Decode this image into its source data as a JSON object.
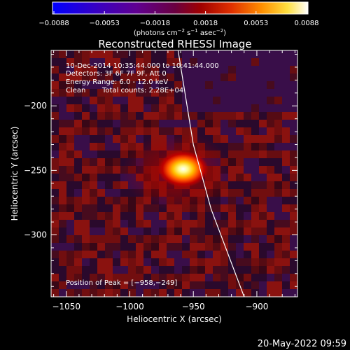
{
  "chart_data": {
    "type": "heatmap",
    "title": "Reconstructed RHESSI Image",
    "xlabel": "Heliocentric X (arcsec)",
    "ylabel": "Heliocentric Y (arcsec)",
    "xlim": [
      -1062,
      -868
    ],
    "ylim": [
      -348,
      -157
    ],
    "x_ticks": [
      -1050,
      -1000,
      -950,
      -900
    ],
    "y_ticks": [
      -200,
      -250,
      -300
    ],
    "colorbar": {
      "min": -0.0088,
      "max": 0.0088,
      "ticks": [
        "−0.0088",
        "−0.0053",
        "−0.0018",
        "0.0018",
        "0.0053",
        "0.0088"
      ],
      "unit_main": "(photons cm",
      "unit_sup1": "−2",
      "unit_mid1": " s",
      "unit_sup2": "−1",
      "unit_mid2": " asec",
      "unit_sup3": "−2",
      "unit_end": ")"
    },
    "annotations": {
      "time_range": "10-Dec-2014 10:35:44.000 to 10:41:44.000",
      "detectors": "Detectors: 3F 6F 7F 9F, Att 0",
      "energy": "Energy Range: 6.0 - 12.0 keV",
      "algorithm": "Clean",
      "counts": "Total counts: 2.28E+04",
      "peak": "Position of Peak = [−958,−249]"
    },
    "peak": {
      "x": -958,
      "y": -249
    },
    "limb": [
      {
        "x": -962,
        "y": -157
      },
      {
        "x": -950,
        "y": -230
      },
      {
        "x": -936,
        "y": -280
      },
      {
        "x": -910,
        "y": -348
      }
    ],
    "footer_date": "20-May-2022 09:59",
    "colors": {
      "background": "#000000",
      "text": "#ffffff",
      "limb": "#ffffff"
    }
  }
}
